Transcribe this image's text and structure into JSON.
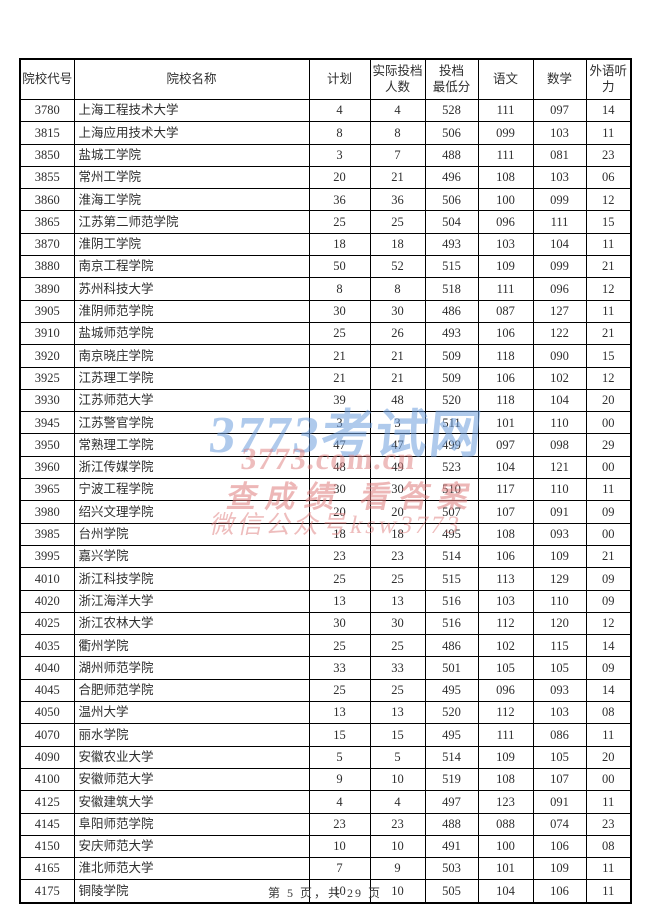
{
  "page": {
    "footer": "第 5 页，共 29 页"
  },
  "table": {
    "columns": [
      {
        "key": "code",
        "label": "院校代号"
      },
      {
        "key": "name",
        "label": "院校名称"
      },
      {
        "key": "plan",
        "label": "计划"
      },
      {
        "key": "actual",
        "label": "实际投档\n人数"
      },
      {
        "key": "min",
        "label": "投档\n最低分"
      },
      {
        "key": "chinese",
        "label": "语文"
      },
      {
        "key": "math",
        "label": "数学"
      },
      {
        "key": "listening",
        "label": "外语听力"
      }
    ],
    "rows": [
      {
        "code": "3780",
        "name": "上海工程技术大学",
        "plan": "4",
        "actual": "4",
        "min": "528",
        "chinese": "111",
        "math": "097",
        "listening": "14"
      },
      {
        "code": "3815",
        "name": "上海应用技术大学",
        "plan": "8",
        "actual": "8",
        "min": "506",
        "chinese": "099",
        "math": "103",
        "listening": "11"
      },
      {
        "code": "3850",
        "name": "盐城工学院",
        "plan": "3",
        "actual": "7",
        "min": "488",
        "chinese": "111",
        "math": "081",
        "listening": "23"
      },
      {
        "code": "3855",
        "name": "常州工学院",
        "plan": "20",
        "actual": "21",
        "min": "496",
        "chinese": "108",
        "math": "103",
        "listening": "06"
      },
      {
        "code": "3860",
        "name": "淮海工学院",
        "plan": "36",
        "actual": "36",
        "min": "506",
        "chinese": "100",
        "math": "099",
        "listening": "12"
      },
      {
        "code": "3865",
        "name": "江苏第二师范学院",
        "plan": "25",
        "actual": "25",
        "min": "504",
        "chinese": "096",
        "math": "111",
        "listening": "15"
      },
      {
        "code": "3870",
        "name": "淮阴工学院",
        "plan": "18",
        "actual": "18",
        "min": "493",
        "chinese": "103",
        "math": "104",
        "listening": "11"
      },
      {
        "code": "3880",
        "name": "南京工程学院",
        "plan": "50",
        "actual": "52",
        "min": "515",
        "chinese": "109",
        "math": "099",
        "listening": "21"
      },
      {
        "code": "3890",
        "name": "苏州科技大学",
        "plan": "8",
        "actual": "8",
        "min": "518",
        "chinese": "111",
        "math": "096",
        "listening": "12"
      },
      {
        "code": "3905",
        "name": "淮阴师范学院",
        "plan": "30",
        "actual": "30",
        "min": "486",
        "chinese": "087",
        "math": "127",
        "listening": "11"
      },
      {
        "code": "3910",
        "name": "盐城师范学院",
        "plan": "25",
        "actual": "26",
        "min": "493",
        "chinese": "106",
        "math": "122",
        "listening": "21"
      },
      {
        "code": "3920",
        "name": "南京晓庄学院",
        "plan": "21",
        "actual": "21",
        "min": "509",
        "chinese": "118",
        "math": "090",
        "listening": "15"
      },
      {
        "code": "3925",
        "name": "江苏理工学院",
        "plan": "21",
        "actual": "21",
        "min": "509",
        "chinese": "106",
        "math": "102",
        "listening": "12"
      },
      {
        "code": "3930",
        "name": "江苏师范大学",
        "plan": "39",
        "actual": "48",
        "min": "520",
        "chinese": "118",
        "math": "104",
        "listening": "20"
      },
      {
        "code": "3945",
        "name": "江苏警官学院",
        "plan": "3",
        "actual": "3",
        "min": "511",
        "chinese": "101",
        "math": "110",
        "listening": "00"
      },
      {
        "code": "3950",
        "name": "常熟理工学院",
        "plan": "47",
        "actual": "47",
        "min": "499",
        "chinese": "097",
        "math": "098",
        "listening": "29"
      },
      {
        "code": "3960",
        "name": "浙江传媒学院",
        "plan": "48",
        "actual": "49",
        "min": "523",
        "chinese": "104",
        "math": "121",
        "listening": "00"
      },
      {
        "code": "3965",
        "name": "宁波工程学院",
        "plan": "30",
        "actual": "30",
        "min": "510",
        "chinese": "117",
        "math": "110",
        "listening": "11"
      },
      {
        "code": "3980",
        "name": "绍兴文理学院",
        "plan": "20",
        "actual": "20",
        "min": "507",
        "chinese": "107",
        "math": "091",
        "listening": "09"
      },
      {
        "code": "3985",
        "name": "台州学院",
        "plan": "18",
        "actual": "18",
        "min": "495",
        "chinese": "108",
        "math": "093",
        "listening": "00"
      },
      {
        "code": "3995",
        "name": "嘉兴学院",
        "plan": "23",
        "actual": "23",
        "min": "514",
        "chinese": "106",
        "math": "109",
        "listening": "21"
      },
      {
        "code": "4010",
        "name": "浙江科技学院",
        "plan": "25",
        "actual": "25",
        "min": "515",
        "chinese": "113",
        "math": "129",
        "listening": "09"
      },
      {
        "code": "4020",
        "name": "浙江海洋大学",
        "plan": "13",
        "actual": "13",
        "min": "516",
        "chinese": "103",
        "math": "110",
        "listening": "09"
      },
      {
        "code": "4025",
        "name": "浙江农林大学",
        "plan": "30",
        "actual": "30",
        "min": "516",
        "chinese": "112",
        "math": "120",
        "listening": "12"
      },
      {
        "code": "4035",
        "name": "衢州学院",
        "plan": "25",
        "actual": "25",
        "min": "486",
        "chinese": "102",
        "math": "115",
        "listening": "14"
      },
      {
        "code": "4040",
        "name": "湖州师范学院",
        "plan": "33",
        "actual": "33",
        "min": "501",
        "chinese": "105",
        "math": "105",
        "listening": "09"
      },
      {
        "code": "4045",
        "name": "合肥师范学院",
        "plan": "25",
        "actual": "25",
        "min": "495",
        "chinese": "096",
        "math": "093",
        "listening": "14"
      },
      {
        "code": "4050",
        "name": "温州大学",
        "plan": "13",
        "actual": "13",
        "min": "520",
        "chinese": "112",
        "math": "103",
        "listening": "08"
      },
      {
        "code": "4070",
        "name": "丽水学院",
        "plan": "15",
        "actual": "15",
        "min": "495",
        "chinese": "111",
        "math": "086",
        "listening": "11"
      },
      {
        "code": "4090",
        "name": "安徽农业大学",
        "plan": "5",
        "actual": "5",
        "min": "514",
        "chinese": "109",
        "math": "105",
        "listening": "20"
      },
      {
        "code": "4100",
        "name": "安徽师范大学",
        "plan": "9",
        "actual": "10",
        "min": "519",
        "chinese": "108",
        "math": "107",
        "listening": "00"
      },
      {
        "code": "4125",
        "name": "安徽建筑大学",
        "plan": "4",
        "actual": "4",
        "min": "497",
        "chinese": "123",
        "math": "091",
        "listening": "11"
      },
      {
        "code": "4145",
        "name": "阜阳师范学院",
        "plan": "23",
        "actual": "23",
        "min": "488",
        "chinese": "088",
        "math": "074",
        "listening": "23"
      },
      {
        "code": "4150",
        "name": "安庆师范大学",
        "plan": "10",
        "actual": "10",
        "min": "491",
        "chinese": "100",
        "math": "106",
        "listening": "08"
      },
      {
        "code": "4165",
        "name": "淮北师范大学",
        "plan": "7",
        "actual": "9",
        "min": "503",
        "chinese": "101",
        "math": "109",
        "listening": "11"
      },
      {
        "code": "4175",
        "name": "铜陵学院",
        "plan": "10",
        "actual": "10",
        "min": "505",
        "chinese": "104",
        "math": "106",
        "listening": "11"
      }
    ]
  },
  "watermark": {
    "line1": "3773考试网",
    "line2": "3773.com.cn",
    "line3": "查成绩 看答案",
    "line4": "微信公众号ksw3773",
    "blue": "#6e9fdd",
    "red": "#df7d7d"
  }
}
